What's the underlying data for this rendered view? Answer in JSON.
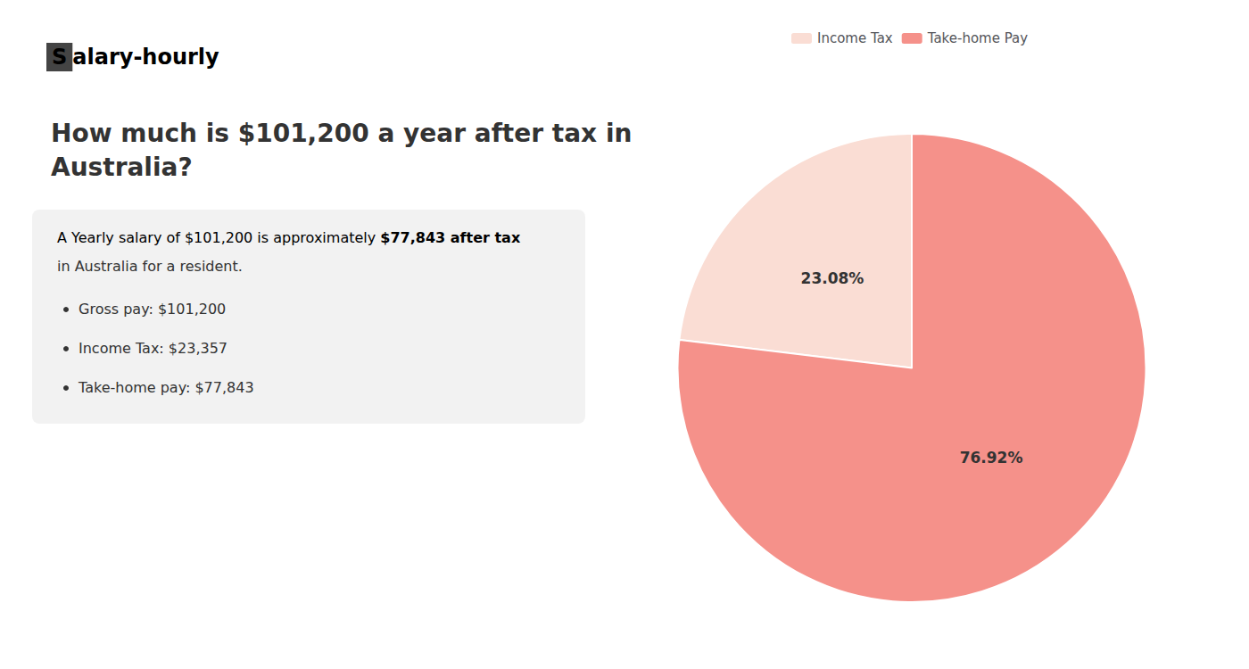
{
  "chart_data": {
    "type": "pie",
    "title": "How much is $101,200 a year after tax in\nAustralia?",
    "annotations": [
      "S",
      "alary-hourly",
      "A Yearly salary of $101,200 is approximately ",
      "$77,843 after tax",
      "in Australia for a resident.",
      "Gross pay: $101,200",
      "Income Tax: $23,357",
      "Take-home pay: $77,843"
    ],
    "categories": [
      "Income Tax",
      "Take-home Pay"
    ],
    "values": [
      23.08,
      76.92
    ],
    "value_labels": [
      "23.08%",
      "76.92%"
    ],
    "colors": [
      "#faddd4",
      "#f5918a"
    ],
    "data_labels": true,
    "legend": "top"
  }
}
